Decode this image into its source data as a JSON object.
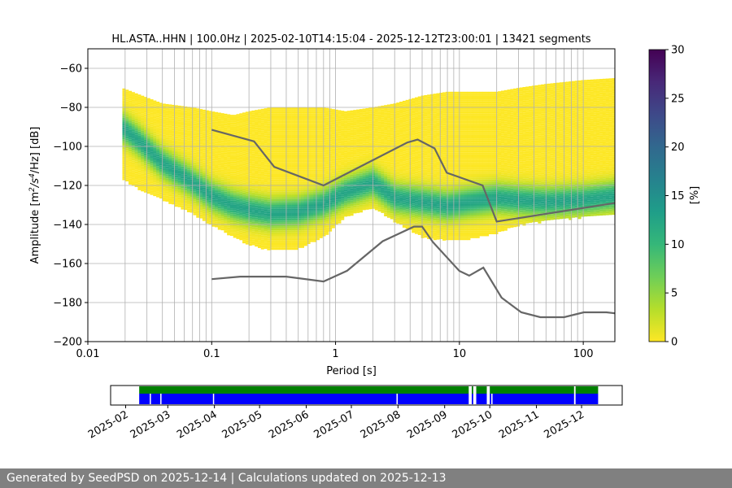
{
  "chart_data": {
    "type": "heatmap",
    "title": "HL.ASTA..HHN | 100.0Hz | 2025-02-10T14:15:04 - 2025-12-12T23:00:01 | 13421 segments",
    "xlabel": "Period [s]",
    "ylabel_parts": [
      "Amplitude [m",
      "2",
      "/s",
      "4",
      "/Hz] [dB]"
    ],
    "x_scale": "log",
    "xlim": [
      0.01,
      180
    ],
    "ylim": [
      -200,
      -50
    ],
    "x_ticks": [
      0.01,
      0.1,
      1,
      10,
      100
    ],
    "x_tick_labels": [
      "0.01",
      "0.1",
      "1",
      "10",
      "100"
    ],
    "y_ticks": [
      -200,
      -180,
      -160,
      -140,
      -120,
      -100,
      -80,
      -60
    ],
    "y_tick_labels": [
      "−200",
      "−180",
      "−160",
      "−140",
      "−120",
      "−100",
      "−80",
      "−60"
    ],
    "grid": true,
    "colorbar": {
      "label": "[%]",
      "range": [
        0,
        30
      ],
      "ticks": [
        0,
        5,
        10,
        15,
        20,
        25,
        30
      ],
      "tick_labels": [
        "0",
        "5",
        "10",
        "15",
        "20",
        "25",
        "30"
      ],
      "colormap": [
        "#fde725",
        "#b5de2b",
        "#6ece58",
        "#35b779",
        "#1f9e89",
        "#26828e",
        "#31688e",
        "#3e4989",
        "#482878",
        "#440154"
      ]
    },
    "psd_band": {
      "period": [
        0.019,
        0.025,
        0.04,
        0.07,
        0.1,
        0.15,
        0.2,
        0.3,
        0.5,
        0.8,
        1.2,
        2,
        3,
        5,
        8,
        12,
        20,
        30,
        50,
        100,
        180
      ],
      "low": [
        -116,
        -121,
        -127,
        -134,
        -140,
        -146,
        -150,
        -153,
        -152,
        -146,
        -136,
        -131,
        -138,
        -146,
        -148,
        -147,
        -144,
        -140,
        -138,
        -136,
        -135
      ],
      "high": [
        -70,
        -73,
        -78,
        -80,
        -82,
        -84,
        -82,
        -80,
        -80,
        -80,
        -82,
        -80,
        -78,
        -74,
        -72,
        -72,
        -72,
        -70,
        -68,
        -66,
        -65
      ],
      "mode": [
        -90,
        -96,
        -108,
        -118,
        -125,
        -130,
        -132,
        -134,
        -133,
        -129,
        -123,
        -118,
        -126,
        -128,
        -130,
        -128,
        -126,
        -127,
        -128,
        -127,
        -125
      ]
    },
    "reference_curves": [
      {
        "period": [
          0.1,
          0.22,
          0.32,
          0.8,
          3.8,
          4.6,
          6.3,
          7.9,
          15.4,
          20,
          180
        ],
        "values": [
          -91.5,
          -97.4,
          -110.5,
          -120,
          -98,
          -96.5,
          -101,
          -113.5,
          -120,
          -138.5,
          -129
        ]
      },
      {
        "period": [
          0.1,
          0.17,
          0.4,
          0.8,
          1.24,
          2.4,
          4.3,
          5,
          6.1,
          10,
          12,
          15.6,
          21.9,
          31.6,
          45,
          70,
          101,
          154,
          180
        ],
        "values": [
          -168,
          -166.7,
          -166.7,
          -169.2,
          -163.7,
          -148.6,
          -141.1,
          -141.1,
          -149,
          -163.8,
          -166.2,
          -162.1,
          -177.5,
          -185,
          -187.5,
          -187.5,
          -185,
          -185,
          -185.5
        ]
      }
    ],
    "availability": {
      "x_ticks": [
        "2025-02",
        "2025-03",
        "2025-04",
        "2025-05",
        "2025-06",
        "2025-07",
        "2025-08",
        "2025-09",
        "2025-10",
        "2025-11",
        "2025-12"
      ],
      "segments": [
        [
          "2025-02-10",
          "2025-09-17"
        ],
        [
          "2025-09-19",
          "2025-09-20"
        ],
        [
          "2025-09-22",
          "2025-09-29"
        ],
        [
          "2025-10-01",
          "2025-11-26"
        ],
        [
          "2025-11-27",
          "2025-12-12"
        ]
      ],
      "gaps": [
        "2025-02-17",
        "2025-02-24",
        "2025-03-31",
        "2025-07-31",
        "2025-10-02"
      ]
    }
  },
  "footer": "Generated by SeedPSD on 2025-12-14 | Calculations updated on 2025-12-13"
}
